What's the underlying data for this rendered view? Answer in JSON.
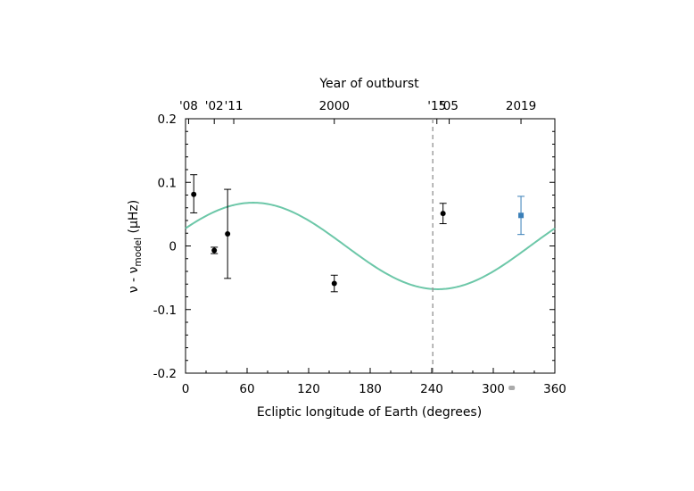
{
  "chart_data": {
    "type": "scatter",
    "xlabel": "Ecliptic longitude of Earth (degrees)",
    "ylabel_main": "ν - ν",
    "ylabel_sub": "model",
    "ylabel_unit": " (μHz)",
    "top_xlabel": "Year of outburst",
    "xlim": [
      0,
      360
    ],
    "ylim": [
      -0.2,
      0.2
    ],
    "xticks": [
      0,
      60,
      120,
      180,
      240,
      300,
      360
    ],
    "xtick_labels": [
      "0",
      "60",
      "120",
      "180",
      "240",
      "300",
      "360"
    ],
    "yticks": [
      0.2,
      0.1,
      0,
      -0.1,
      -0.2
    ],
    "ytick_labels": [
      "0.2",
      "0.1",
      "0",
      "-0.1",
      "-0.2"
    ],
    "top_ticks": [
      {
        "x": 3,
        "label": "'08"
      },
      {
        "x": 28,
        "label": "'02"
      },
      {
        "x": 47,
        "label": "'11"
      },
      {
        "x": 145,
        "label": "2000"
      },
      {
        "x": 245,
        "label": "'15"
      },
      {
        "x": 257,
        "label": "'05"
      },
      {
        "x": 327,
        "label": "2019"
      }
    ],
    "points": [
      {
        "x": 8,
        "y": 0.081,
        "yerr_low": 0.029,
        "yerr_high": 0.031
      },
      {
        "x": 28,
        "y": -0.007,
        "yerr_low": 0.005,
        "yerr_high": 0.005
      },
      {
        "x": 41,
        "y": 0.019,
        "yerr_low": 0.07,
        "yerr_high": 0.07
      },
      {
        "x": 145,
        "y": -0.059,
        "yerr_low": 0.013,
        "yerr_high": 0.013
      },
      {
        "x": 251,
        "y": 0.051,
        "yerr_low": 0.016,
        "yerr_high": 0.016
      }
    ],
    "highlight_point": {
      "x": 327,
      "y": 0.048,
      "yerr_low": 0.03,
      "yerr_high": 0.03
    },
    "model_curve": {
      "amplitude": 0.068,
      "phase_deg": 24,
      "description": "sinusoid"
    },
    "vline_x": 241,
    "small_marker": {
      "x": 318,
      "y": -0.2
    },
    "colors": {
      "curve": "#6cc7a8",
      "points": "#000000",
      "highlight": "#3a7fb8",
      "vline": "#999999",
      "small_marker": "#aaaaaa"
    }
  }
}
